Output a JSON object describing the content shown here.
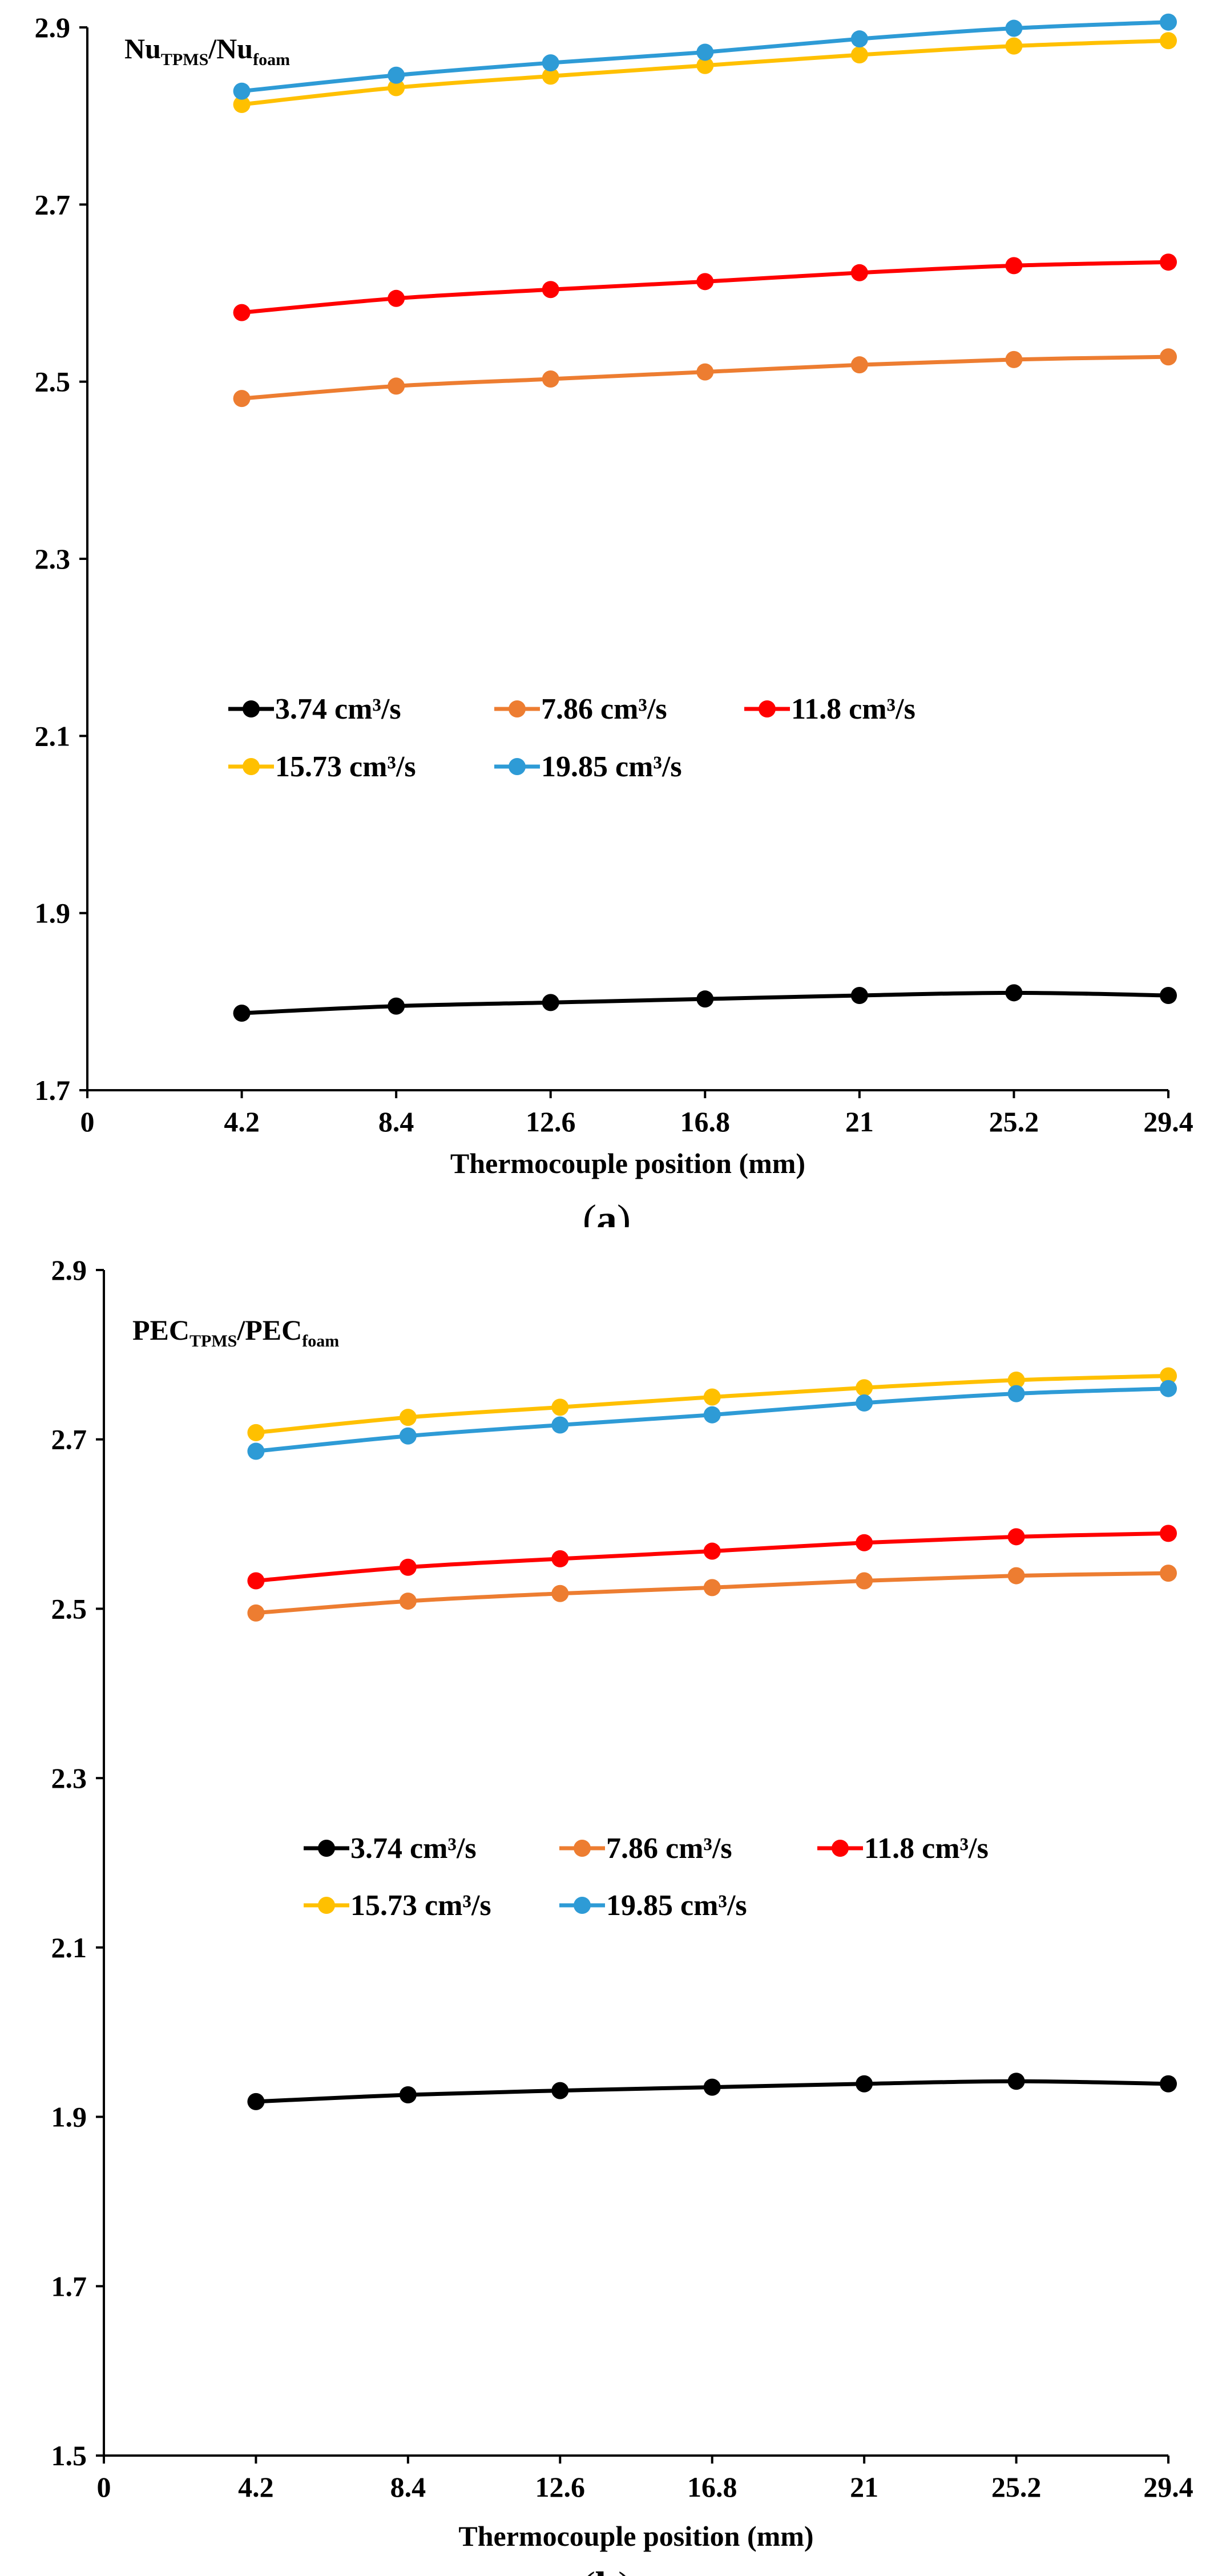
{
  "chart_data": [
    {
      "type": "line",
      "caption": "a",
      "ylabel": {
        "main1": "Nu",
        "sub1": "TPMS",
        "sep": "/",
        "main2": "Nu",
        "sub2": "foam"
      },
      "xlabel": "Thermocouple position (mm)",
      "x": [
        4.2,
        8.4,
        12.6,
        16.8,
        21,
        25.2,
        29.4
      ],
      "xticks": [
        "0",
        "4.2",
        "8.4",
        "12.6",
        "16.8",
        "21",
        "25.2",
        "29.4"
      ],
      "yticks": [
        "1.7",
        "1.9",
        "2.1",
        "2.3",
        "2.5",
        "2.7",
        "2.9"
      ],
      "ylim": [
        1.7,
        2.9
      ],
      "grid": false,
      "legend": "center",
      "series": [
        {
          "name": "3.74 cm³/s",
          "color": "#000000",
          "values": [
            1.787,
            1.795,
            1.799,
            1.803,
            1.807,
            1.81,
            1.807
          ]
        },
        {
          "name": "7.86 cm³/s",
          "color": "#ED7D31",
          "values": [
            2.481,
            2.495,
            2.503,
            2.511,
            2.519,
            2.525,
            2.528
          ]
        },
        {
          "name": "11.8 cm³/s",
          "color": "#FF0000",
          "values": [
            2.578,
            2.594,
            2.604,
            2.613,
            2.623,
            2.631,
            2.635
          ]
        },
        {
          "name": "15.73 cm³/s",
          "color": "#FFC000",
          "values": [
            2.813,
            2.832,
            2.845,
            2.857,
            2.869,
            2.879,
            2.885
          ]
        },
        {
          "name": "19.85 cm³/s",
          "color": "#2E9BD6",
          "values": [
            2.828,
            2.846,
            2.86,
            2.872,
            2.887,
            2.899,
            2.906
          ]
        }
      ]
    },
    {
      "type": "line",
      "caption": "b",
      "ylabel": {
        "main1": "PEC",
        "sub1": "TPMS",
        "sep": "/",
        "main2": "PEC",
        "sub2": "foam"
      },
      "xlabel": "Thermocouple position (mm)",
      "x": [
        4.2,
        8.4,
        12.6,
        16.8,
        21,
        25.2,
        29.4
      ],
      "xticks": [
        "0",
        "4.2",
        "8.4",
        "12.6",
        "16.8",
        "21",
        "25.2",
        "29.4"
      ],
      "yticks": [
        "1.5",
        "1.7",
        "1.9",
        "2.1",
        "2.3",
        "2.5",
        "2.7",
        "2.9"
      ],
      "ylim": [
        1.5,
        2.9
      ],
      "grid": false,
      "legend": "center",
      "series": [
        {
          "name": "3.74 cm³/s",
          "color": "#000000",
          "values": [
            1.918,
            1.926,
            1.931,
            1.935,
            1.939,
            1.942,
            1.939
          ]
        },
        {
          "name": "7.86 cm³/s",
          "color": "#ED7D31",
          "values": [
            2.495,
            2.509,
            2.518,
            2.525,
            2.533,
            2.539,
            2.542
          ]
        },
        {
          "name": "11.8 cm³/s",
          "color": "#FF0000",
          "values": [
            2.533,
            2.549,
            2.559,
            2.568,
            2.578,
            2.585,
            2.589
          ]
        },
        {
          "name": "15.73 cm³/s",
          "color": "#FFC000",
          "values": [
            2.708,
            2.726,
            2.738,
            2.75,
            2.761,
            2.77,
            2.775
          ]
        },
        {
          "name": "19.85 cm³/s",
          "color": "#2E9BD6",
          "values": [
            2.686,
            2.704,
            2.717,
            2.729,
            2.743,
            2.754,
            2.76
          ]
        }
      ]
    }
  ]
}
